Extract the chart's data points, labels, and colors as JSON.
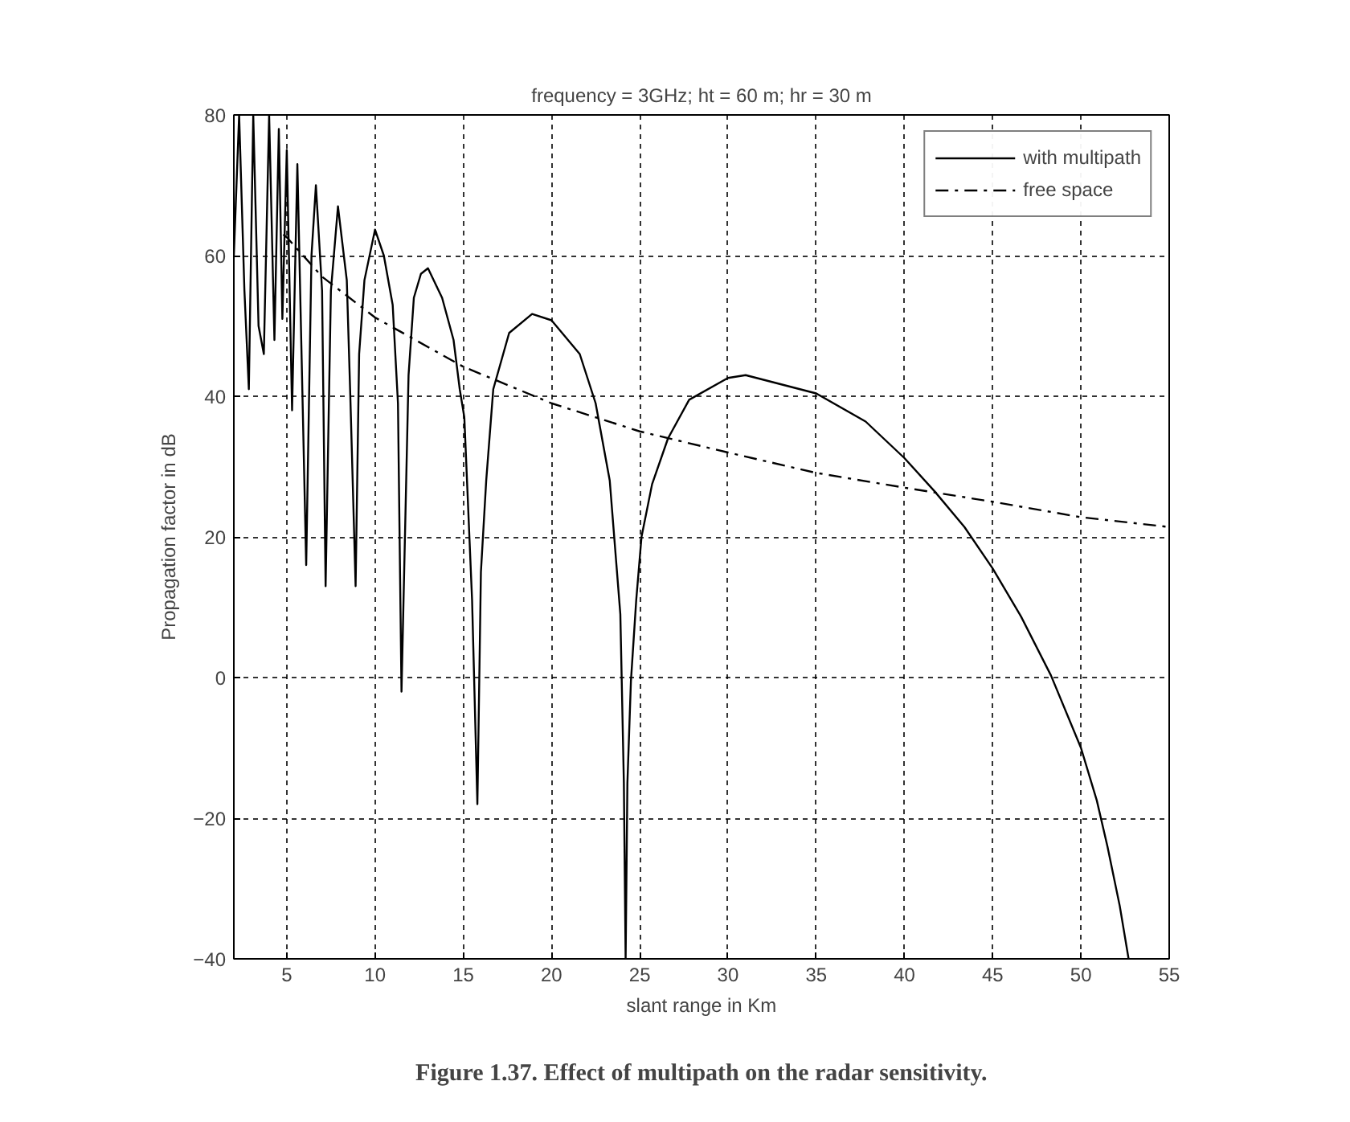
{
  "chart_data": {
    "type": "line",
    "title": "frequency = 3GHz; ht = 60 m; hr = 30 m",
    "xlabel": "slant range in Km",
    "ylabel": "Propagation factor in dB",
    "xlim": [
      2,
      55
    ],
    "xticks": [
      5,
      10,
      15,
      20,
      25,
      30,
      35,
      40,
      45,
      50,
      55
    ],
    "ylim": [
      -40,
      80
    ],
    "yticks": [
      -40,
      -20,
      0,
      20,
      40,
      60,
      80
    ],
    "grid": true,
    "legend": "top right",
    "marker": "none",
    "annotations": [
      "Figure 1.37. Effect of multipath on the radar sensitivity."
    ],
    "series": [
      {
        "name": "with multipath",
        "color": "#000000",
        "line_style": "solid",
        "x": [
          2.0,
          2.3,
          2.6,
          2.85,
          3.1,
          3.4,
          3.7,
          4.0,
          4.3,
          4.55,
          4.75,
          5.0,
          5.3,
          5.6,
          6.1,
          6.4,
          6.65,
          7.0,
          7.2,
          7.5,
          7.9,
          8.4,
          8.6,
          8.9,
          9.1,
          9.4,
          10.0,
          10.5,
          11.0,
          11.3,
          11.5,
          11.9,
          12.2,
          12.6,
          13.0,
          13.8,
          14.45,
          14.8,
          15.06,
          15.5,
          15.8,
          16.0,
          16.3,
          16.7,
          17.6,
          18.9,
          20.0,
          21.6,
          22.5,
          23.3,
          23.9,
          24.1,
          24.2,
          24.3,
          24.5,
          24.8,
          25.1,
          25.7,
          26.6,
          27.8,
          30,
          31,
          35,
          37.8,
          40,
          41.7,
          43.4,
          45,
          46.6,
          48.3,
          50,
          50.9,
          51.5,
          52.2,
          52.7
        ],
        "values": [
          60,
          80,
          55,
          41,
          80,
          50,
          46,
          80,
          48,
          78,
          51,
          75,
          38,
          73,
          16,
          60,
          70,
          55,
          13,
          55,
          67,
          56.5,
          40,
          13,
          46,
          56.5,
          63.7,
          60,
          53,
          39,
          -2,
          43,
          54,
          57.4,
          58.2,
          54,
          48,
          41,
          37,
          11,
          -18,
          15,
          28,
          41,
          49,
          51.7,
          50.8,
          46,
          39,
          28,
          9,
          -15,
          -40,
          -15,
          -0.5,
          11,
          20,
          27.5,
          34,
          39.5,
          42.6,
          43,
          40.4,
          36.4,
          31.2,
          26.5,
          21.4,
          15.5,
          8.7,
          0.3,
          -10,
          -17.5,
          -24,
          -32.5,
          -40
        ]
      },
      {
        "name": "free space",
        "color": "#000000",
        "line_style": "dashdot",
        "x": [
          4.8,
          5,
          7,
          10,
          15,
          20,
          25,
          30,
          35,
          40,
          45,
          50,
          55
        ],
        "values": [
          63,
          62.6,
          57,
          51.2,
          44.2,
          39,
          35,
          32,
          29.1,
          27,
          25,
          22.8,
          21.4
        ]
      }
    ]
  }
}
